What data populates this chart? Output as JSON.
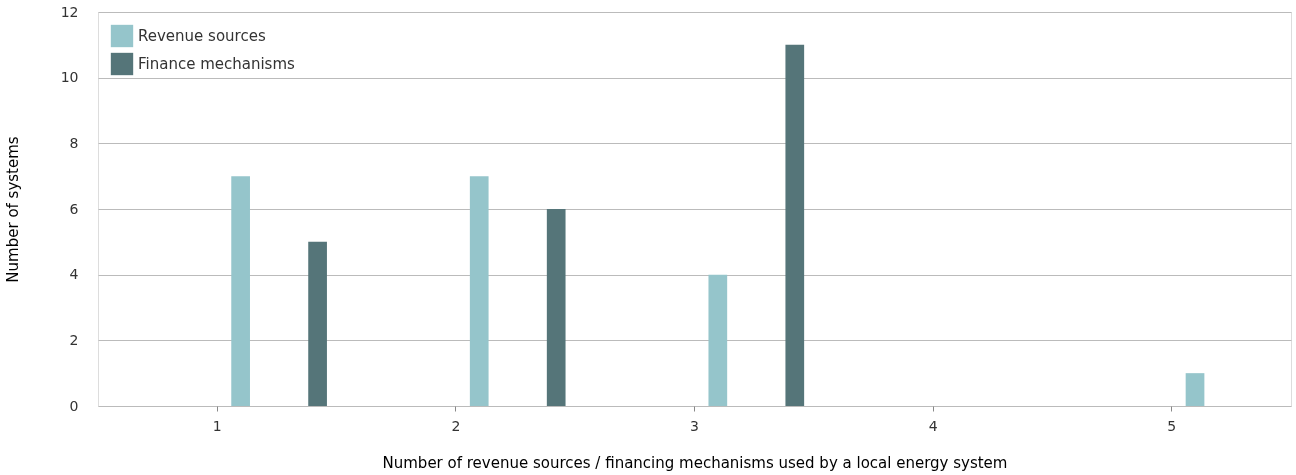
{
  "chart_data": {
    "type": "bar",
    "xlabel": "Number of revenue sources / financing mechanisms used by a local energy system",
    "ylabel": "Number of systems",
    "categories": [
      "1",
      "2",
      "3",
      "4",
      "5"
    ],
    "series": [
      {
        "name": "Revenue sources",
        "color": "#95c5cb",
        "values": [
          7,
          7,
          4,
          0,
          1
        ]
      },
      {
        "name": "Finance mechanisms",
        "color": "#557579",
        "values": [
          5,
          6,
          11,
          0,
          0
        ]
      }
    ],
    "ylim": [
      0,
      12
    ],
    "yticks": [
      0,
      2,
      4,
      6,
      8,
      10,
      12
    ],
    "grid": "y",
    "legend": "top left"
  }
}
